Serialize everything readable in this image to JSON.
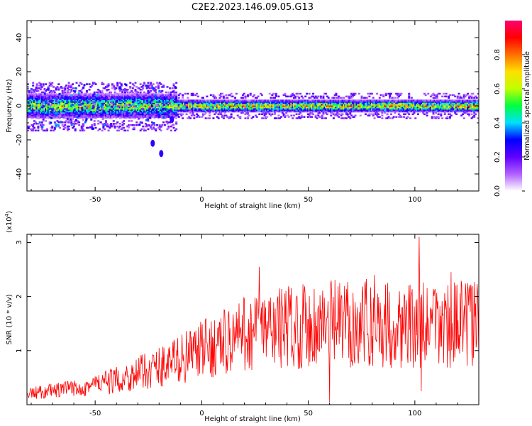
{
  "figure": {
    "title": "C2E2.2023.146.09.05.G13"
  },
  "chart_data": [
    {
      "type": "heatmap",
      "xlabel": "Height of straight line (km)",
      "ylabel": "Frequency (Hz)",
      "xlim": [
        -82,
        130
      ],
      "ylim": [
        -50,
        50
      ],
      "xticks": [
        -50,
        0,
        50,
        100
      ],
      "yticks": [
        -40,
        -20,
        0,
        20,
        40
      ],
      "colorbar": {
        "label": "Normalized spectral amplitude",
        "range": [
          0,
          1
        ],
        "ticks": [
          "0.0",
          "0.2",
          "0.4",
          "0.6",
          "0.8"
        ],
        "colors": [
          "#ffffff",
          "#b060ff",
          "#6000ff",
          "#0000ff",
          "#00e0ff",
          "#00ff40",
          "#c0ff00",
          "#ffe000",
          "#ff7000",
          "#ff0000",
          "#ff0070"
        ]
      },
      "band": {
        "center_hz": 0,
        "halfwidth_hz": 4,
        "left_halfwidth_hz": 8,
        "strongest_near_zero": true
      },
      "outliers": [
        {
          "x": -23,
          "y": -22
        },
        {
          "x": -19,
          "y": -28
        },
        {
          "x": -14,
          "y": -8
        }
      ]
    },
    {
      "type": "line",
      "xlabel": "Height of straight line (km)",
      "ylabel": "SNR (10 * v/v)",
      "y_multiplier": "(x10",
      "y_multiplier_exp": "4",
      "y_multiplier_close": ")",
      "xlim": [
        -82,
        130
      ],
      "ylim": [
        0,
        3.15
      ],
      "xticks": [
        -50,
        0,
        50,
        100
      ],
      "yticks": [
        1,
        2,
        3
      ],
      "color": "#ff0000",
      "trend": {
        "x": [
          -82,
          -60,
          -40,
          -20,
          0,
          20,
          40,
          60,
          80,
          100,
          130
        ],
        "y": [
          0.2,
          0.3,
          0.45,
          0.7,
          1.0,
          1.3,
          1.45,
          1.5,
          1.5,
          1.45,
          1.5
        ]
      },
      "peaks": [
        {
          "x": 27,
          "y": 2.55
        },
        {
          "x": 102,
          "y": 3.1
        },
        {
          "x": 81,
          "y": 2.4
        },
        {
          "x": 117,
          "y": 2.45
        },
        {
          "x": 60,
          "y": 0.05
        },
        {
          "x": 103,
          "y": 0.25
        }
      ]
    }
  ]
}
